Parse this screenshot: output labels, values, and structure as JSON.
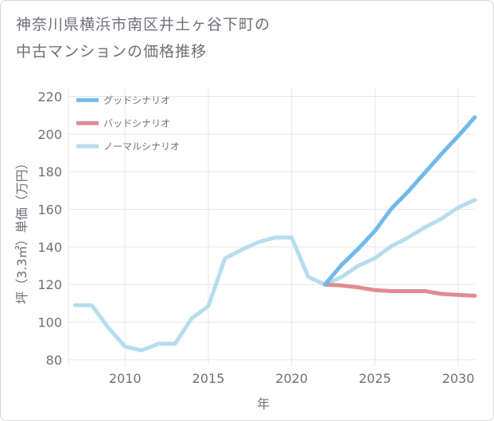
{
  "chart_data": {
    "type": "line",
    "title_lines": [
      "神奈川県横浜市南区井土ヶ谷下町の",
      "中古マンションの価格推移"
    ],
    "xlabel": "年",
    "ylabel": "坪（3.3㎡）単価（万円）",
    "xlim": [
      2006.6,
      2031
    ],
    "ylim": [
      77,
      224
    ],
    "x_ticks": [
      2010,
      2015,
      2020,
      2025,
      2030
    ],
    "y_ticks": [
      80,
      100,
      120,
      140,
      160,
      180,
      200,
      220
    ],
    "grid": true,
    "legend_position": "top-left",
    "series": [
      {
        "name": "グッドシナリオ",
        "color": "#72b9ea",
        "width": 5,
        "x": [
          2022,
          2023,
          2024,
          2025,
          2026,
          2027,
          2028,
          2029,
          2030,
          2031
        ],
        "values": [
          120,
          130.5,
          139,
          148.5,
          160.5,
          169.5,
          179.5,
          189.5,
          199,
          209
        ]
      },
      {
        "name": "バッドシナリオ",
        "color": "#e08c92",
        "width": 5,
        "x": [
          2022,
          2023,
          2024,
          2025,
          2026,
          2027,
          2028,
          2029,
          2030,
          2031
        ],
        "values": [
          120,
          119.5,
          118.5,
          117,
          116.5,
          116.5,
          116.5,
          115,
          114.5,
          114
        ]
      },
      {
        "name": "ノーマルシナリオ",
        "color": "#b6ddec",
        "width": 5,
        "x": [
          2007,
          2008,
          2009,
          2010,
          2011,
          2012,
          2013,
          2014,
          2015,
          2016,
          2017,
          2018,
          2019,
          2020,
          2021,
          2022,
          2023,
          2024,
          2025,
          2026,
          2027,
          2028,
          2029,
          2030,
          2031
        ],
        "values": [
          109,
          109,
          97,
          87,
          85,
          88.5,
          88.5,
          102,
          108.5,
          134,
          138.5,
          142.5,
          145,
          145,
          124,
          120,
          124,
          130,
          134,
          140.5,
          145,
          150.5,
          155,
          161,
          165
        ]
      }
    ]
  }
}
